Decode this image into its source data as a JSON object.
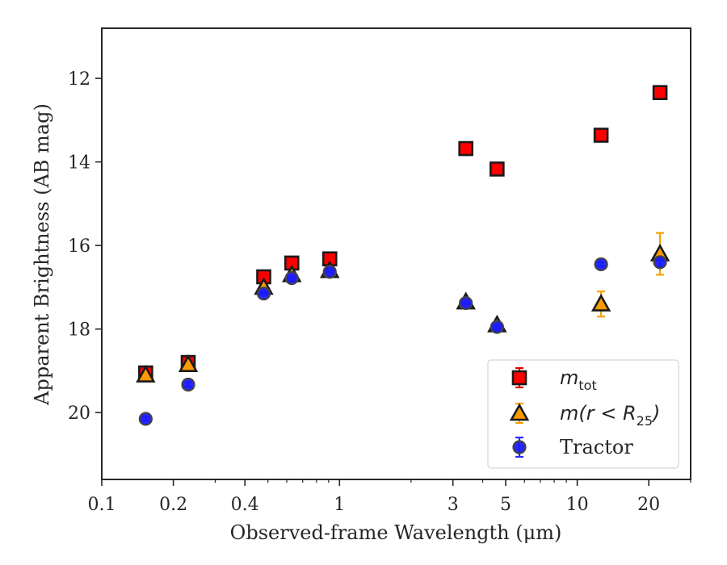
{
  "chart_data": {
    "type": "scatter",
    "xlabel": "Observed-frame Wavelength (μm)",
    "ylabel": "Apparent Brightness (AB mag)",
    "xscale": "log",
    "yaxis_inverted": true,
    "xlim": [
      0.1,
      30
    ],
    "ylim": [
      21.6,
      10.8
    ],
    "x_ticks": [
      {
        "value": 0.1,
        "label": "0.1"
      },
      {
        "value": 0.2,
        "label": "0.2"
      },
      {
        "value": 0.4,
        "label": "0.4"
      },
      {
        "value": 1,
        "label": "1"
      },
      {
        "value": 3,
        "label": "3"
      },
      {
        "value": 5,
        "label": "5"
      },
      {
        "value": 10,
        "label": "10"
      },
      {
        "value": 20,
        "label": "20"
      }
    ],
    "y_ticks": [
      {
        "value": 12,
        "label": "12"
      },
      {
        "value": 14,
        "label": "14"
      },
      {
        "value": 16,
        "label": "16"
      },
      {
        "value": 18,
        "label": "18"
      },
      {
        "value": 20,
        "label": "20"
      }
    ],
    "grid": false,
    "legend_position": "lower-right",
    "series": [
      {
        "name": "m_tot",
        "legend_label": "m",
        "legend_subscript": "tot",
        "marker": "square",
        "face_color": "#ff0000",
        "edge_color": "#1a1a1a",
        "errorbar_color": "#e00000",
        "points": [
          {
            "x": 0.153,
            "y": 19.05,
            "err": 0.05
          },
          {
            "x": 0.231,
            "y": 18.8,
            "err": 0.05
          },
          {
            "x": 0.48,
            "y": 16.75,
            "err": 0.03
          },
          {
            "x": 0.63,
            "y": 16.42,
            "err": 0.03
          },
          {
            "x": 0.91,
            "y": 16.32,
            "err": 0.03
          },
          {
            "x": 3.4,
            "y": 13.68,
            "err": 0.03
          },
          {
            "x": 4.6,
            "y": 14.17,
            "err": 0.03
          },
          {
            "x": 12.6,
            "y": 13.36,
            "err": 0.03
          },
          {
            "x": 22.3,
            "y": 12.34,
            "err": 0.03
          }
        ]
      },
      {
        "name": "m(r<R25)",
        "legend_label": "m(r < R",
        "legend_subscript": "25",
        "legend_suffix": ")",
        "marker": "triangle",
        "face_color": "#ff9900",
        "edge_color": "#1a1a1a",
        "errorbar_color": "#f5a300",
        "points": [
          {
            "x": 0.153,
            "y": 19.1,
            "err": 0.05
          },
          {
            "x": 0.231,
            "y": 18.85,
            "err": 0.05
          },
          {
            "x": 0.48,
            "y": 17.0,
            "err": 0.03
          },
          {
            "x": 0.63,
            "y": 16.7,
            "err": 0.03
          },
          {
            "x": 0.91,
            "y": 16.6,
            "err": 0.03
          },
          {
            "x": 3.4,
            "y": 17.35,
            "err": 0.05
          },
          {
            "x": 4.6,
            "y": 17.9,
            "err": 0.05
          },
          {
            "x": 12.6,
            "y": 17.4,
            "err": 0.3
          },
          {
            "x": 22.3,
            "y": 16.2,
            "err": 0.5
          }
        ]
      },
      {
        "name": "Tractor",
        "legend_label": "Tractor",
        "marker": "circle",
        "face_color": "#1a1aff",
        "edge_color": "#444444",
        "errorbar_color": "#2b2bff",
        "points": [
          {
            "x": 0.153,
            "y": 20.15,
            "err": 0.05
          },
          {
            "x": 0.231,
            "y": 19.33,
            "err": 0.05
          },
          {
            "x": 0.48,
            "y": 17.15,
            "err": 0.03
          },
          {
            "x": 0.63,
            "y": 16.78,
            "err": 0.03
          },
          {
            "x": 0.91,
            "y": 16.63,
            "err": 0.03
          },
          {
            "x": 3.4,
            "y": 17.38,
            "err": 0.03
          },
          {
            "x": 4.6,
            "y": 17.95,
            "err": 0.03
          },
          {
            "x": 12.6,
            "y": 16.45,
            "err": 0.05
          },
          {
            "x": 22.3,
            "y": 16.4,
            "err": 0.1
          }
        ]
      }
    ]
  }
}
